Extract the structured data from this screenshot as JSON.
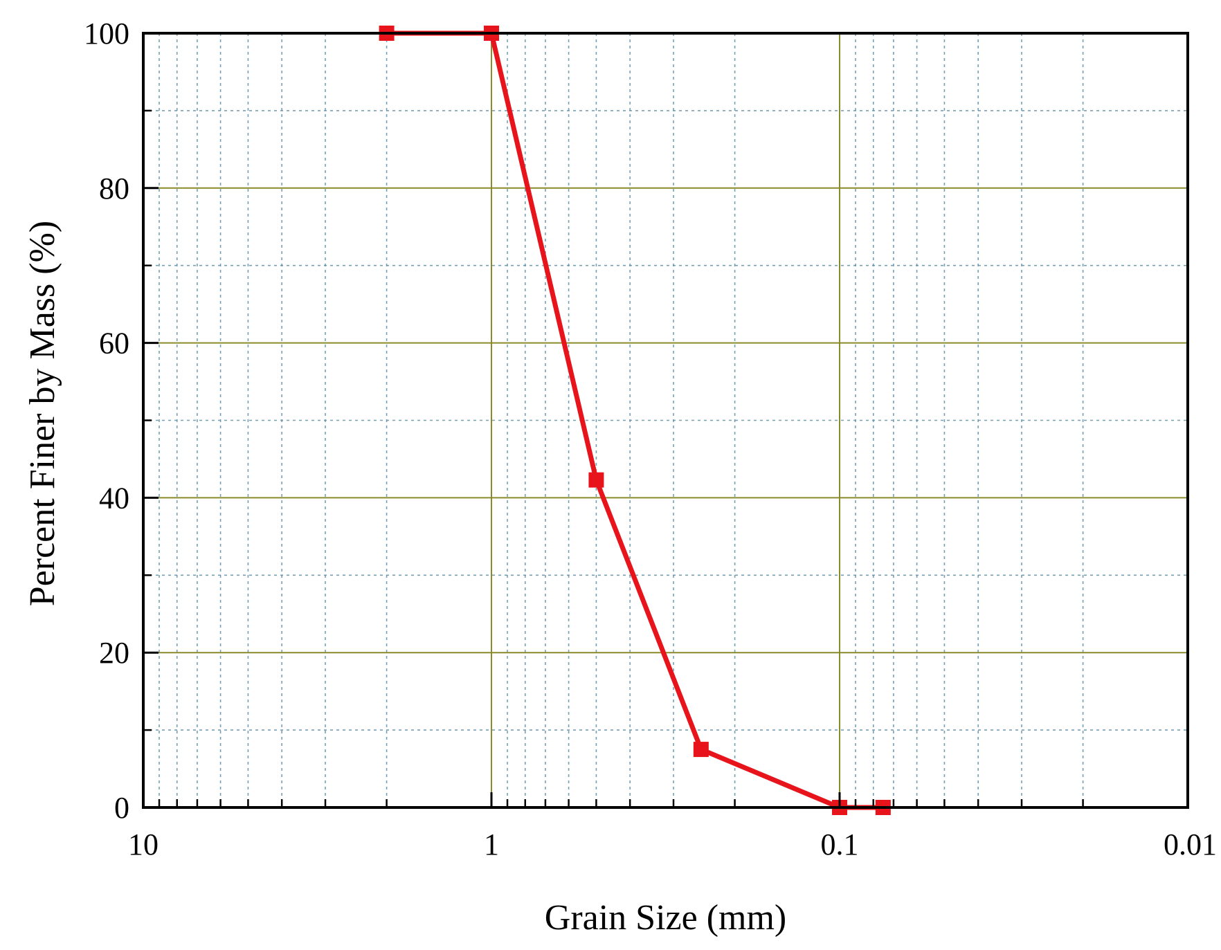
{
  "chart_data": {
    "type": "line",
    "title": "",
    "xlabel": "Grain Size (mm)",
    "ylabel": "Percent Finer by Mass (%)",
    "x_scale": "log",
    "x_reversed": true,
    "xlim": [
      10,
      0.01
    ],
    "ylim": [
      0,
      100
    ],
    "x_ticks": [
      {
        "value": 10,
        "label": "10"
      },
      {
        "value": 1,
        "label": "1"
      },
      {
        "value": 0.1,
        "label": "0.1"
      },
      {
        "value": 0.01,
        "label": "0.01"
      }
    ],
    "y_ticks": [
      {
        "value": 0,
        "label": "0"
      },
      {
        "value": 20,
        "label": "20"
      },
      {
        "value": 40,
        "label": "40"
      },
      {
        "value": 60,
        "label": "60"
      },
      {
        "value": 80,
        "label": "80"
      },
      {
        "value": 100,
        "label": "100"
      }
    ],
    "grid": true,
    "legend": "none",
    "series": [
      {
        "color": "#e8141b",
        "marker": "square",
        "points": [
          {
            "x": 2,
            "y": 100
          },
          {
            "x": 1,
            "y": 100
          },
          {
            "x": 0.5,
            "y": 42.3
          },
          {
            "x": 0.25,
            "y": 7.5
          },
          {
            "x": 0.1,
            "y": 0
          },
          {
            "x": 0.075,
            "y": 0
          }
        ]
      }
    ],
    "colors": {
      "major_grid": "#8a8a2a",
      "minor_grid": "#5f8fa8",
      "axis": "#000000"
    }
  }
}
